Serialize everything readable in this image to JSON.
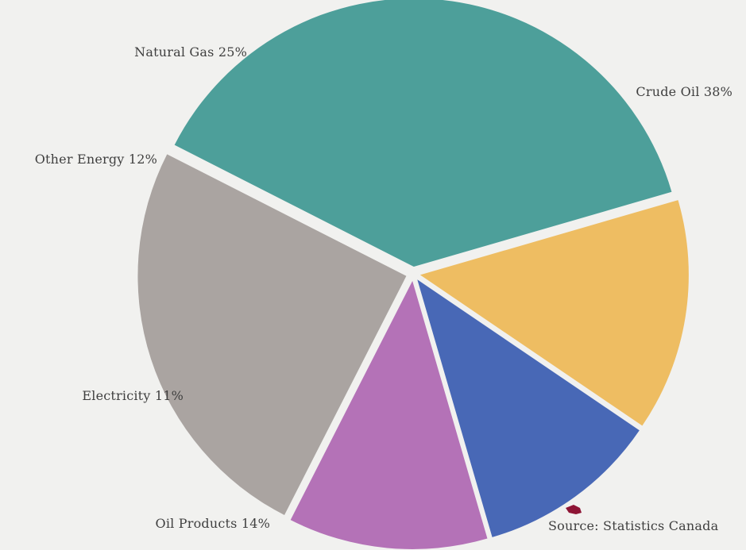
{
  "chart_data": {
    "type": "pie",
    "title": "",
    "legend": "none",
    "grid": false,
    "slices": [
      {
        "label": "Crude Oil",
        "value": 38,
        "label_text": "Crude Oil  38%",
        "color": "#4d9f9a"
      },
      {
        "label": "Oil Products",
        "value": 14,
        "label_text": "Oil Products  14%",
        "color": "#eebd62"
      },
      {
        "label": "Electricity",
        "value": 11,
        "label_text": "Electricity  11%",
        "color": "#4868b6"
      },
      {
        "label": "Other Energy",
        "value": 12,
        "label_text": "Other Energy  12%",
        "color": "#b472b7"
      },
      {
        "label": "Natural Gas",
        "value": 25,
        "label_text": "Natural Gas  25%",
        "color": "#aaa4a1"
      }
    ],
    "source": "Source: Statistics Canada",
    "source_mark_color": "#8e1535"
  }
}
